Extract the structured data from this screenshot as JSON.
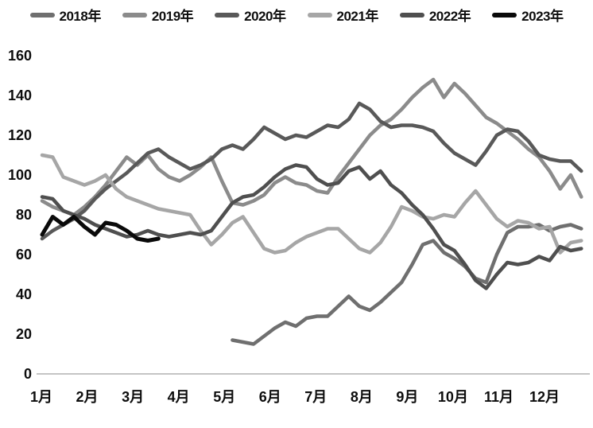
{
  "chart_data": {
    "type": "line",
    "title": "",
    "x_axis": {
      "tick_labels": [
        "1月",
        "2月",
        "3月",
        "4月",
        "5月",
        "6月",
        "7月",
        "8月",
        "9月",
        "10月",
        "11月",
        "12月"
      ],
      "unit": "weekly points across one year",
      "weeks": 52
    },
    "y_axis": {
      "tick_labels": [
        "0",
        "20",
        "40",
        "60",
        "80",
        "100",
        "120",
        "140",
        "160"
      ],
      "min": 0,
      "max": 160,
      "step": 20
    },
    "grid": "off",
    "legend_position": "top",
    "axis_line_color": "#c4c4c4",
    "series": [
      {
        "name": "2018年",
        "color": "#6f6f6f",
        "start_week": 18,
        "values": [
          17,
          16,
          15,
          19,
          23,
          26,
          24,
          28,
          29,
          29,
          34,
          39,
          34,
          32,
          36,
          41,
          46,
          55,
          65,
          67,
          61,
          58,
          54,
          48,
          46,
          60,
          71,
          74,
          74,
          75,
          72,
          74,
          75,
          73
        ]
      },
      {
        "name": "2019年",
        "color": "#8b8b8b",
        "start_week": 0,
        "values": [
          87,
          84,
          82,
          80,
          84,
          89,
          95,
          102,
          109,
          105,
          110,
          103,
          99,
          97,
          100,
          104,
          109,
          97,
          86,
          85,
          87,
          90,
          96,
          99,
          96,
          95,
          92,
          91,
          99,
          106,
          113,
          120,
          125,
          128,
          133,
          139,
          144,
          148,
          139,
          146,
          141,
          135,
          129,
          126,
          122,
          118,
          113,
          109,
          102,
          93,
          100,
          89
        ]
      },
      {
        "name": "2020年",
        "color": "#595959",
        "start_week": 0,
        "values": [
          68,
          72,
          75,
          78,
          82,
          88,
          93,
          97,
          101,
          106,
          111,
          113,
          109,
          106,
          103,
          105,
          108,
          113,
          115,
          113,
          118,
          124,
          121,
          118,
          120,
          119,
          122,
          125,
          124,
          128,
          136,
          133,
          127,
          124,
          125,
          125,
          124,
          122,
          116,
          111,
          108,
          105,
          112,
          120,
          123,
          122,
          117,
          110,
          108,
          107,
          107,
          102
        ]
      },
      {
        "name": "2021年",
        "color": "#a6a6a6",
        "start_week": 0,
        "values": [
          110,
          109,
          99,
          97,
          95,
          97,
          100,
          93,
          89,
          87,
          85,
          83,
          82,
          81,
          80,
          72,
          65,
          70,
          76,
          79,
          71,
          63,
          61,
          62,
          66,
          69,
          71,
          73,
          73,
          68,
          63,
          61,
          66,
          74,
          84,
          82,
          79,
          78,
          80,
          79,
          86,
          92,
          85,
          78,
          74,
          77,
          76,
          73,
          74,
          61,
          66,
          67
        ]
      },
      {
        "name": "2022年",
        "color": "#4f4f4f",
        "start_week": 0,
        "values": [
          89,
          88,
          82,
          80,
          78,
          75,
          73,
          71,
          69,
          70,
          72,
          70,
          69,
          70,
          71,
          70,
          72,
          79,
          86,
          89,
          90,
          94,
          99,
          103,
          105,
          104,
          98,
          95,
          96,
          102,
          104,
          98,
          102,
          95,
          91,
          85,
          80,
          73,
          65,
          62,
          55,
          47,
          43,
          50,
          56,
          55,
          56,
          59,
          57,
          64,
          62,
          63
        ]
      },
      {
        "name": "2023年",
        "color": "#0a0a0a",
        "start_week": 0,
        "values": [
          70,
          79,
          75,
          79,
          74,
          70,
          76,
          75,
          72,
          68,
          67,
          68
        ]
      }
    ]
  }
}
